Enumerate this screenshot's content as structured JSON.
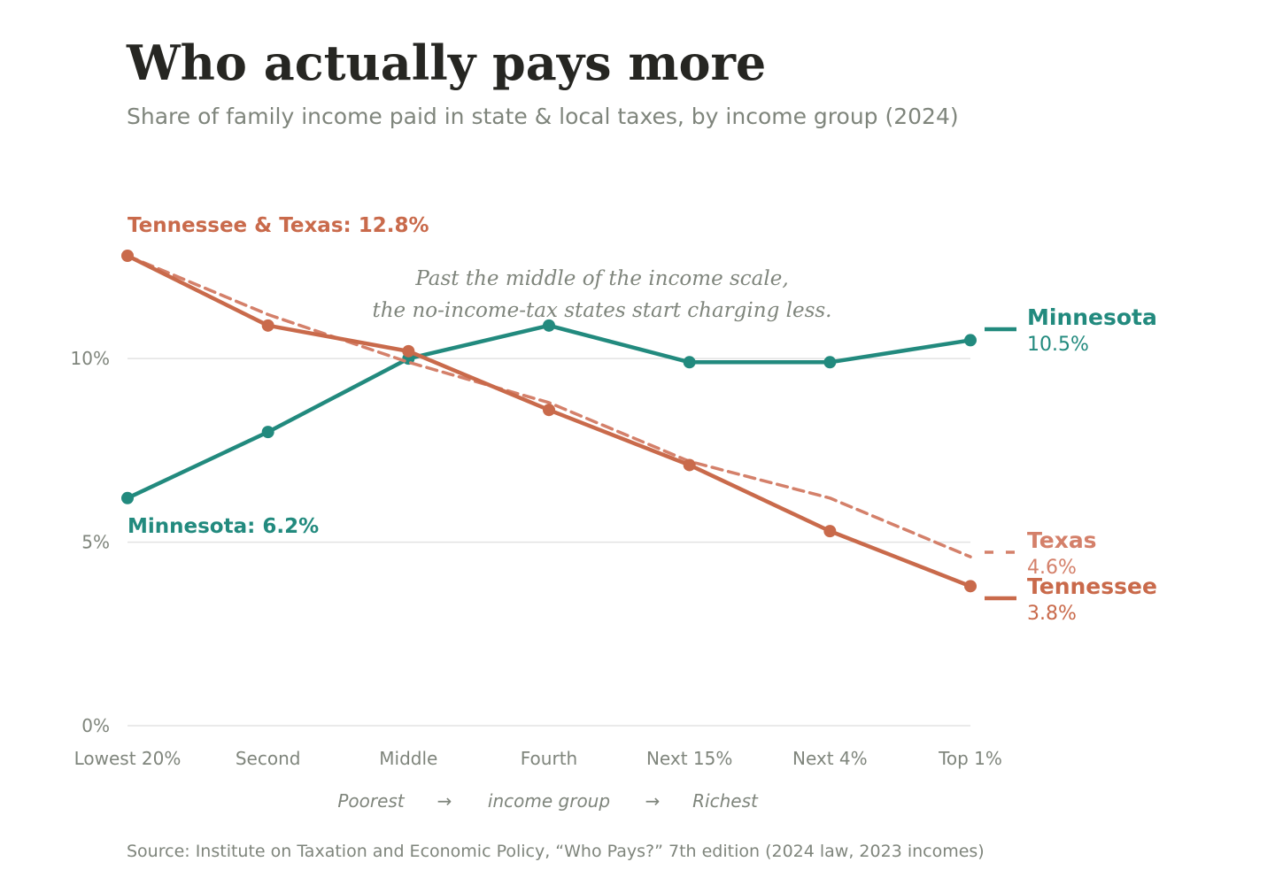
{
  "header": {
    "title": "Who actually pays more",
    "subtitle": "Share of family income paid in state & local taxes, by income group (2024)"
  },
  "annotation": {
    "line1": "Past the middle of the income scale,",
    "line2": "the no-income-tax states start charging less."
  },
  "callouts": {
    "start_high": "Tennessee & Texas: 12.8%",
    "start_low": "Minnesota: 6.2%"
  },
  "axis_note": {
    "left": "Poorest",
    "arrow1": "→",
    "middle": "income group",
    "arrow2": "→",
    "right": "Richest"
  },
  "source": "Source: Institute on Taxation and Economic Policy, “Who Pays?” 7th edition (2024 law, 2023 incomes)",
  "colors": {
    "minnesota": "#228a7e",
    "tennessee": "#c96a4b",
    "texas": "#d4806a",
    "grid": "#e3e3e3"
  },
  "chart_data": {
    "type": "line",
    "title": "Who actually pays more",
    "subtitle": "Share of family income paid in state & local taxes, by income group (2024)",
    "categories": [
      "Lowest 20%",
      "Second",
      "Middle",
      "Fourth",
      "Next 15%",
      "Next 4%",
      "Top 1%"
    ],
    "y_ticks": [
      {
        "value": 0,
        "label": "0%"
      },
      {
        "value": 5,
        "label": "5%"
      },
      {
        "value": 10,
        "label": "10%"
      }
    ],
    "ylim": [
      0,
      12.8
    ],
    "grid": true,
    "series": [
      {
        "name": "Minnesota",
        "key": "minnesota",
        "style": "solid",
        "markers": true,
        "values": [
          6.2,
          8.0,
          10.0,
          10.9,
          9.9,
          9.9,
          10.5
        ],
        "end_label": "10.5%"
      },
      {
        "name": "Texas",
        "key": "texas",
        "style": "dashed",
        "markers": false,
        "values": [
          12.8,
          11.2,
          9.9,
          8.8,
          7.2,
          6.2,
          4.6
        ],
        "end_label": "4.6%"
      },
      {
        "name": "Tennessee",
        "key": "tennessee",
        "style": "solid",
        "markers": true,
        "values": [
          12.8,
          10.9,
          10.2,
          8.6,
          7.1,
          5.3,
          3.8
        ],
        "end_label": "3.8%"
      }
    ]
  }
}
